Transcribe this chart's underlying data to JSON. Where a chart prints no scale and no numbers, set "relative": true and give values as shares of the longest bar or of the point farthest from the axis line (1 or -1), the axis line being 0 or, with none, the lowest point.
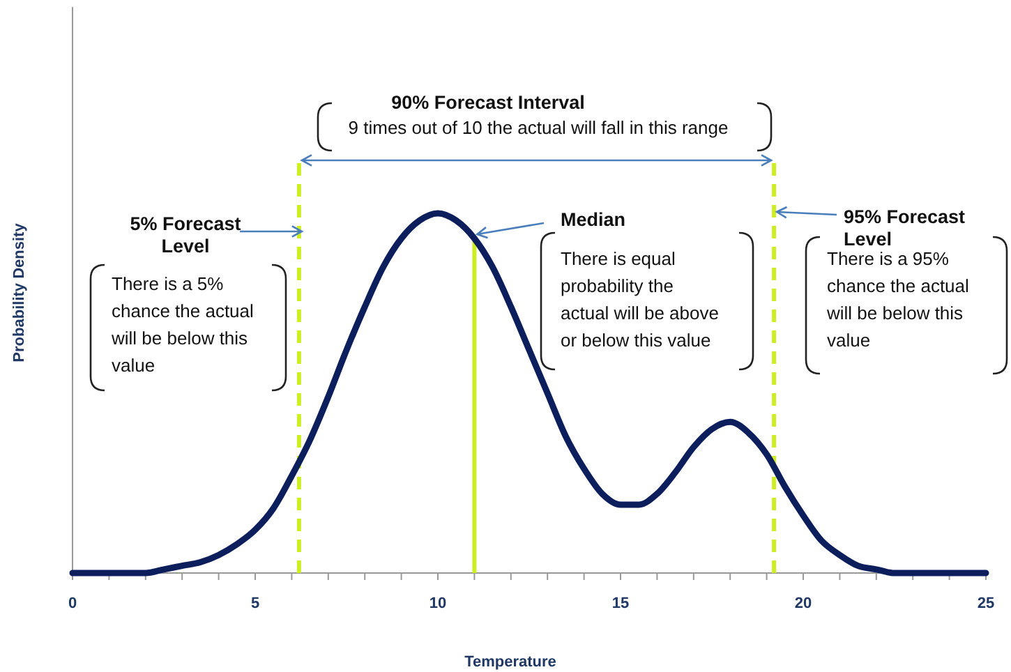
{
  "chart_data": {
    "type": "line",
    "relative": true,
    "xlabel": "Temperature",
    "ylabel": "Probability Density",
    "xlim": [
      0,
      25
    ],
    "xticks": [
      0,
      {
        "value": 1,
        "label": null
      },
      {
        "value": 2,
        "label": null
      },
      {
        "value": 3,
        "label": null
      },
      {
        "value": 4,
        "label": null
      },
      5,
      {
        "value": 6,
        "label": null
      },
      {
        "value": 7,
        "label": null
      },
      {
        "value": 8,
        "label": null
      },
      {
        "value": 9,
        "label": null
      },
      10,
      {
        "value": 11,
        "label": null
      },
      {
        "value": 12,
        "label": null
      },
      {
        "value": 13,
        "label": null
      },
      {
        "value": 14,
        "label": null
      },
      15,
      {
        "value": 16,
        "label": null
      },
      {
        "value": 17,
        "label": null
      },
      {
        "value": 18,
        "label": null
      },
      {
        "value": 19,
        "label": null
      },
      20,
      {
        "value": 21,
        "label": null
      },
      {
        "value": 22,
        "label": null
      },
      {
        "value": 23,
        "label": null
      },
      {
        "value": 24,
        "label": null
      },
      25
    ],
    "x": [
      0,
      0.5,
      1,
      1.5,
      2,
      2.5,
      3,
      3.5,
      4,
      4.5,
      5,
      5.5,
      6,
      6.5,
      7,
      7.5,
      8,
      8.5,
      9,
      9.5,
      10,
      10.5,
      11,
      11.5,
      12,
      12.5,
      13,
      13.5,
      14,
      14.5,
      15,
      15.5,
      16,
      16.5,
      17,
      17.5,
      18,
      18.5,
      19,
      19.5,
      20,
      20.5,
      21,
      21.5,
      22,
      22.5,
      23,
      23.5,
      24,
      24.5,
      25
    ],
    "series": [
      {
        "color": "#0c1f5c",
        "values": [
          0,
          0,
          0,
          0,
          0,
          0.01,
          0.02,
          0.03,
          0.05,
          0.08,
          0.12,
          0.18,
          0.27,
          0.37,
          0.49,
          0.62,
          0.74,
          0.85,
          0.93,
          0.98,
          1,
          0.98,
          0.93,
          0.85,
          0.74,
          0.62,
          0.5,
          0.38,
          0.29,
          0.22,
          0.19,
          0.19,
          0.22,
          0.28,
          0.35,
          0.4,
          0.42,
          0.39,
          0.33,
          0.24,
          0.16,
          0.09,
          0.05,
          0.02,
          0.01,
          0,
          0,
          0,
          0,
          0,
          0
        ]
      }
    ],
    "ref_lines": [
      {
        "axis": "x",
        "value": 6.2,
        "label": "5% Forecast Level",
        "color": "#ccee22",
        "line_style": "dashed"
      },
      {
        "axis": "x",
        "value": 11,
        "label": "Median",
        "color": "#ccee22",
        "line_style": "solid"
      },
      {
        "axis": "x",
        "value": 19.2,
        "label": "95% Forecast Level",
        "color": "#ccee22",
        "line_style": "dashed"
      }
    ],
    "annotations": [
      "90% Forecast Interval",
      "9 times out of 10 the actual will fall in this range",
      "There is a 5% chance the actual will be below this value",
      "There is equal probability the actual will be above or below this value",
      "There is a 95% chance the actual will be below this value"
    ]
  }
}
